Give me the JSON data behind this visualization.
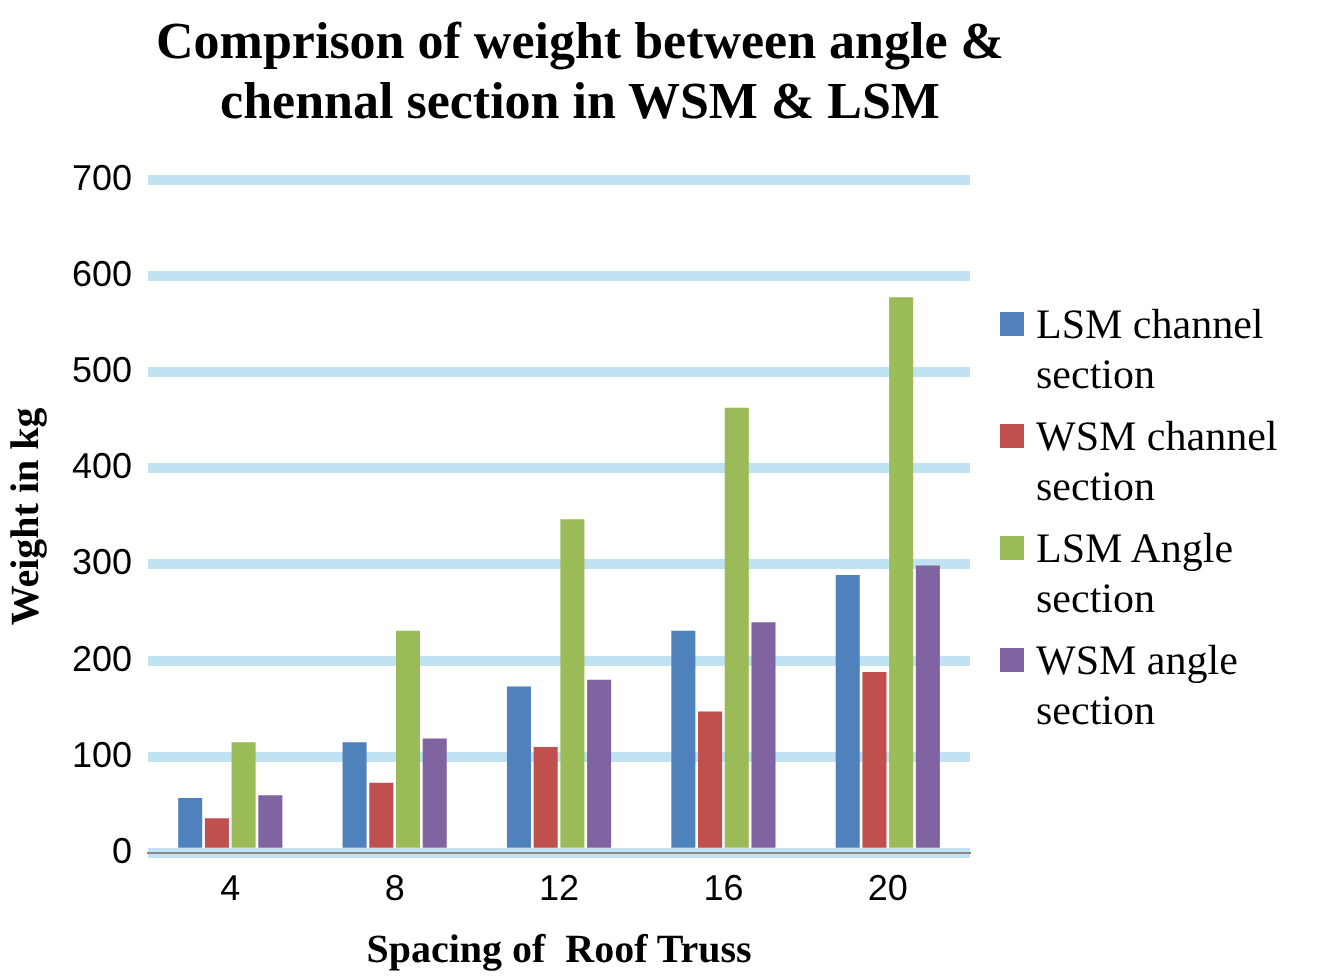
{
  "chart_data": {
    "type": "bar",
    "title": "Comprison of weight between angle & chennal section in WSM & LSM",
    "xlabel": "Spacing of  Roof Truss",
    "ylabel": "Weight in kg",
    "categories": [
      "4",
      "8",
      "12",
      "16",
      "20"
    ],
    "series": [
      {
        "name": "LSM channel section",
        "color": "#4f81bd",
        "values": [
          57,
          115,
          173,
          231,
          289
        ]
      },
      {
        "name": "WSM channel section",
        "color": "#c0504d",
        "values": [
          36,
          73,
          110,
          147,
          188
        ]
      },
      {
        "name": "LSM Angle section",
        "color": "#9bbb59",
        "values": [
          115,
          231,
          347,
          463,
          578
        ]
      },
      {
        "name": "WSM angle section",
        "color": "#8064a2",
        "values": [
          60,
          119,
          180,
          240,
          299
        ]
      }
    ],
    "ylim": [
      0,
      700
    ],
    "yticks": [
      0,
      100,
      200,
      300,
      400,
      500,
      600,
      700
    ],
    "grid": "y",
    "legend": "right"
  }
}
